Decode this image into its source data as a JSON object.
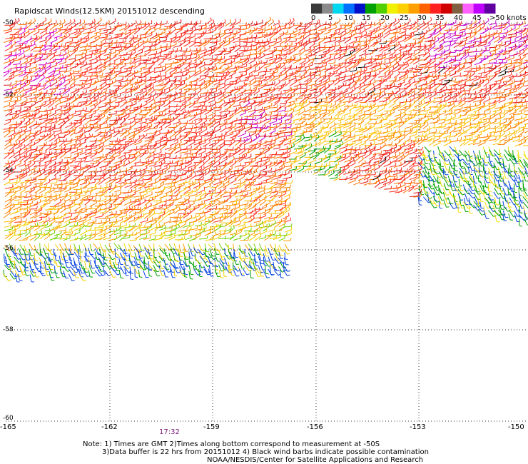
{
  "title": "Rapidscat Winds(12.5KM) 20151012 descending",
  "color_scale": {
    "labels": [
      "0",
      "5",
      "10",
      "15",
      "20",
      "25",
      "30",
      "35",
      "40",
      "45",
      ">50 knots"
    ],
    "colors": [
      "#3a3a3a",
      "#8a8a8a",
      "#00d8f0",
      "#0070ff",
      "#0010c8",
      "#00a000",
      "#50d000",
      "#f0f000",
      "#ffd000",
      "#ffa000",
      "#ff6000",
      "#ff2020",
      "#d00000",
      "#806040",
      "#ff60ff",
      "#c000ff",
      "#6000a0"
    ]
  },
  "axes": {
    "lat_labels": [
      "-50",
      "-52",
      "-54",
      "-56",
      "-58",
      "-60"
    ],
    "lon_labels": [
      "-165",
      "-162",
      "-159",
      "-156",
      "-153",
      "-150"
    ]
  },
  "time_label": "17:32",
  "notes": {
    "line1": "Note: 1) Times are GMT 2)Times along bottom correspond to measurement at -50S",
    "line2": "3)Data buffer is 22 hrs from 20151012 4) Black wind barbs indicate possible contamination",
    "line3": "NOAA/NESDIS/Center for Satellite Applications and Research"
  },
  "wind_regions": [
    {
      "name": "left-north-swath",
      "lat_range": [
        -55.0,
        -50.0
      ],
      "speed_knots": "30-45"
    },
    {
      "name": "left-south-swath",
      "lat_range": [
        -56.5,
        -55.0
      ],
      "speed_knots": "10-25"
    },
    {
      "name": "right-north-swath",
      "lat_range": [
        -54.5,
        -50.0
      ],
      "speed_knots": "30-45"
    },
    {
      "name": "right-southeast-swath",
      "lat_range": [
        -55.2,
        -53.5
      ],
      "speed_knots": "10-20"
    }
  ]
}
